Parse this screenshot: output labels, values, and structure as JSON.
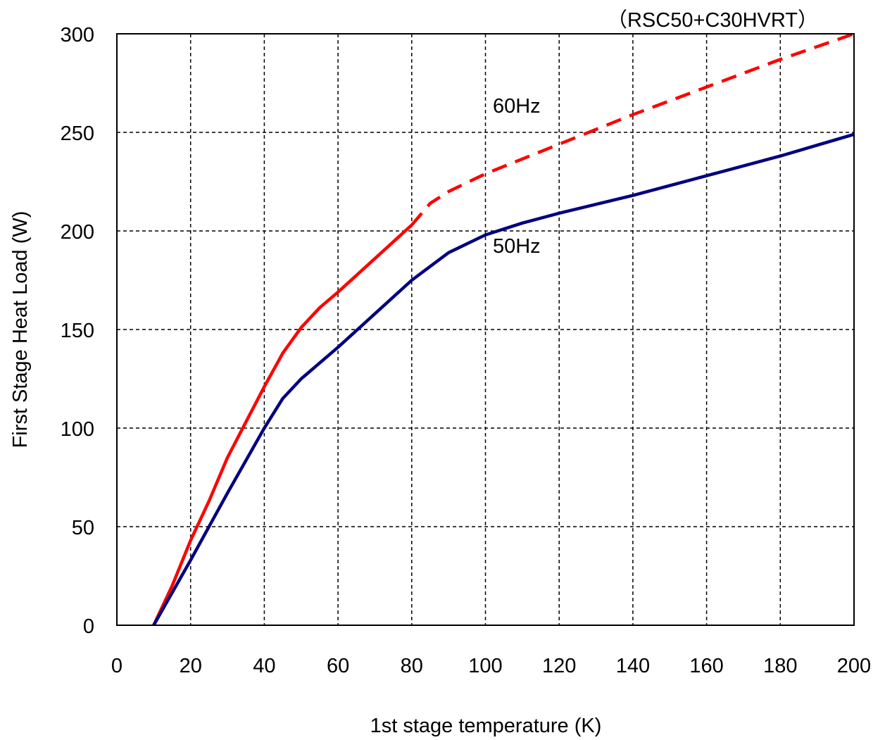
{
  "chart_data": {
    "type": "line",
    "title": "",
    "annotation_top": "（RSC50+C30HVRT）",
    "xlabel": "1st stage temperature (K)",
    "ylabel": "First Stage Heat Load (W)",
    "xlim": [
      0,
      200
    ],
    "ylim": [
      0,
      300
    ],
    "x_ticks": [
      0,
      20,
      40,
      60,
      80,
      100,
      120,
      140,
      160,
      180,
      200
    ],
    "y_ticks": [
      0,
      50,
      100,
      150,
      200,
      250,
      300
    ],
    "grid": true,
    "grid_style": "dashed",
    "series": [
      {
        "name": "60Hz",
        "color": "#ff0000",
        "segments": [
          {
            "style": "solid",
            "points": [
              [
                10,
                0
              ],
              [
                15,
                20
              ],
              [
                20,
                43
              ],
              [
                25,
                63
              ],
              [
                30,
                85
              ],
              [
                35,
                103
              ],
              [
                40,
                121
              ],
              [
                45,
                138
              ],
              [
                50,
                151
              ],
              [
                55,
                161
              ],
              [
                60,
                169
              ],
              [
                70,
                186
              ],
              [
                80,
                203
              ]
            ]
          },
          {
            "style": "dashed",
            "points": [
              [
                80,
                203
              ],
              [
                85,
                214
              ],
              [
                90,
                220
              ],
              [
                100,
                229
              ],
              [
                120,
                244
              ],
              [
                140,
                259
              ],
              [
                160,
                273
              ],
              [
                180,
                287
              ],
              [
                200,
                300
              ]
            ]
          }
        ]
      },
      {
        "name": "50Hz",
        "color": "#000080",
        "segments": [
          {
            "style": "solid",
            "points": [
              [
                10,
                0
              ],
              [
                20,
                33
              ],
              [
                30,
                67
              ],
              [
                40,
                100
              ],
              [
                45,
                115
              ],
              [
                50,
                125
              ],
              [
                60,
                141
              ],
              [
                70,
                158
              ],
              [
                80,
                175
              ],
              [
                90,
                189
              ],
              [
                100,
                198
              ],
              [
                110,
                204
              ],
              [
                120,
                209
              ],
              [
                140,
                218
              ],
              [
                160,
                228
              ],
              [
                180,
                238
              ],
              [
                200,
                249
              ]
            ]
          }
        ]
      }
    ],
    "labels": [
      {
        "text": "60Hz",
        "x": 102,
        "y": 260
      },
      {
        "text": "50Hz",
        "x": 102,
        "y": 189
      }
    ]
  }
}
